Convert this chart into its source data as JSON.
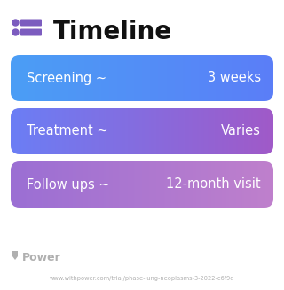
{
  "title": "Timeline",
  "title_icon_color": "#7c5cbf",
  "background_color": "#ffffff",
  "rows": [
    {
      "label": "Screening ~",
      "value": "3 weeks",
      "gradient_left": "#4b9ef5",
      "gradient_right": "#5b7ef8"
    },
    {
      "label": "Treatment ~",
      "value": "Varies",
      "gradient_left": "#6b7ef5",
      "gradient_right": "#a05ac8"
    },
    {
      "label": "Follow ups ~",
      "value": "12-month visit",
      "gradient_left": "#9b6fd4",
      "gradient_right": "#bf80cc"
    }
  ],
  "footer_logo_text": "Power",
  "footer_url": "www.withpower.com/trial/phase-lung-neoplasms-3-2022-c6f9d",
  "footer_color": "#b0b0b0",
  "figsize": [
    3.2,
    3.27
  ],
  "dpi": 100
}
